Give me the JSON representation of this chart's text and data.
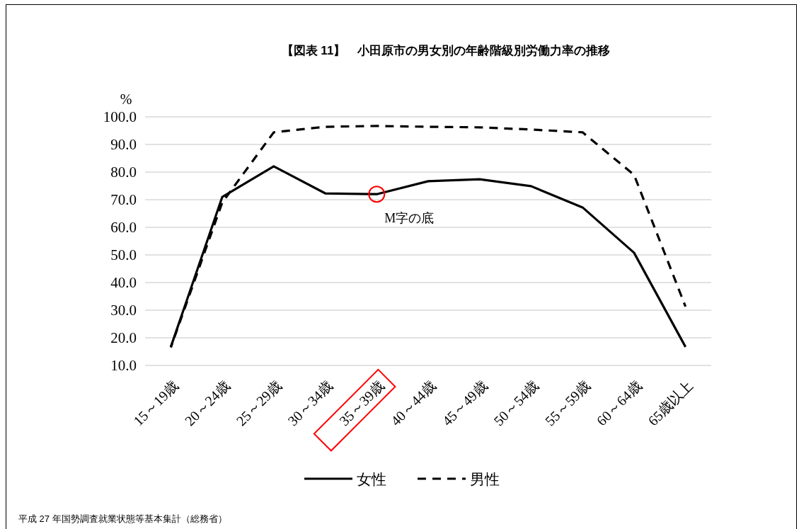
{
  "chart_data": {
    "type": "line",
    "title": "【図表 11】　小田原市の男女別の年齢階級別労働力率の推移",
    "ylabel": "%",
    "categories": [
      "15～19歳",
      "20～24歳",
      "25～29歳",
      "30～34歳",
      "35～39歳",
      "40～44歳",
      "45～49歳",
      "50～54歳",
      "55～59歳",
      "60～64歳",
      "65歳以上"
    ],
    "series": [
      {
        "name": "女性",
        "color": "#000000",
        "line_style": "solid",
        "values": [
          16.7,
          71.0,
          82.1,
          72.3,
          72.0,
          76.7,
          77.4,
          74.9,
          67.2,
          50.8,
          16.7
        ]
      },
      {
        "name": "男性",
        "color": "#000000",
        "line_style": "dashed",
        "values": [
          16.5,
          69.0,
          94.4,
          96.4,
          96.7,
          96.4,
          96.2,
          95.4,
          94.4,
          79.0,
          31.3
        ]
      }
    ],
    "ylim": [
      10,
      100
    ],
    "yticks": [
      {
        "value": 10,
        "label": "10.0"
      },
      {
        "value": 20,
        "label": "20.0"
      },
      {
        "value": 30,
        "label": "30.0"
      },
      {
        "value": 40,
        "label": "40.0"
      },
      {
        "value": 50,
        "label": "50.0"
      },
      {
        "value": 60,
        "label": "60.0"
      },
      {
        "value": 70,
        "label": "70.0"
      },
      {
        "value": 80,
        "label": "80.0"
      },
      {
        "value": 90,
        "label": "90.0"
      },
      {
        "value": 100,
        "label": "100.0"
      }
    ],
    "grid": "y",
    "legend": "bottom",
    "marker": "none",
    "annotations": [
      {
        "text": "M字の底",
        "x": "35～39歳",
        "y": 72.0
      },
      "平成 27 年国勢調査就業状態等基本集計（総務省）"
    ]
  }
}
